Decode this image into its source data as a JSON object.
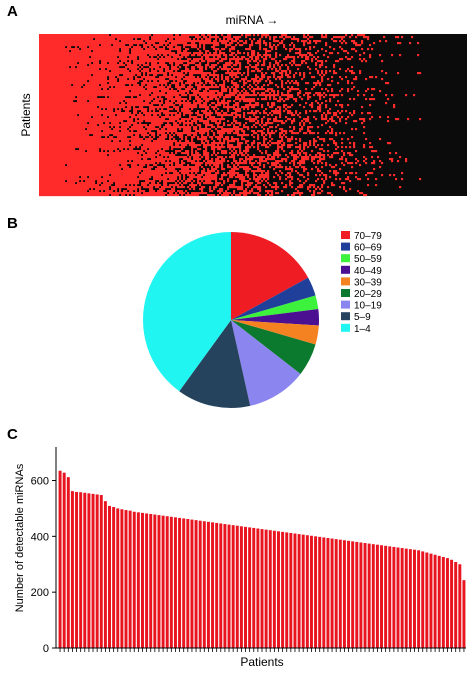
{
  "panels": {
    "a": "A",
    "b": "B",
    "c": "C"
  },
  "chart_data": [
    {
      "type": "heatmap",
      "panel": "A",
      "title": "",
      "xlabel": "miRNA →",
      "ylabel": "Patients",
      "colors": {
        "high": "#ff2a2a",
        "low": "#0b0b0b"
      },
      "grid": false
    },
    {
      "type": "pie",
      "panel": "B",
      "title": "",
      "legend_position": "right",
      "slices": [
        {
          "label": "70–79",
          "value": 17.0,
          "color": "#ef1c24"
        },
        {
          "label": "60–69",
          "value": 3.5,
          "color": "#1f3f9a"
        },
        {
          "label": "50–59",
          "value": 2.5,
          "color": "#3cf23c"
        },
        {
          "label": "40–49",
          "value": 3.0,
          "color": "#4b0f91"
        },
        {
          "label": "30–39",
          "value": 3.5,
          "color": "#f58220"
        },
        {
          "label": "20–29",
          "value": 6.0,
          "color": "#0c7a2e"
        },
        {
          "label": "10–19",
          "value": 11.0,
          "color": "#8b85f0"
        },
        {
          "label": "5–9",
          "value": 13.5,
          "color": "#26435e"
        },
        {
          "label": "1–4",
          "value": 40.0,
          "color": "#20f5f2"
        }
      ]
    },
    {
      "type": "bar",
      "panel": "C",
      "title": "",
      "xlabel": "Patients",
      "ylabel": "Number of detectable miRNAs",
      "ylim": [
        0,
        720
      ],
      "yticks": [
        0,
        200,
        400,
        600
      ],
      "bar_color": "#e8141f",
      "values": [
        635,
        628,
        612,
        562,
        559,
        558,
        556,
        554,
        552,
        550,
        548,
        526,
        509,
        505,
        500,
        497,
        494,
        492,
        488,
        486,
        484,
        482,
        480,
        478,
        476,
        474,
        472,
        470,
        468,
        466,
        464,
        462,
        460,
        458,
        456,
        454,
        452,
        450,
        448,
        446,
        444,
        442,
        440,
        438,
        436,
        434,
        432,
        430,
        428,
        426,
        424,
        422,
        420,
        418,
        416,
        414,
        412,
        410,
        408,
        406,
        404,
        402,
        400,
        398,
        396,
        394,
        392,
        390,
        388,
        386,
        384,
        382,
        380,
        378,
        376,
        374,
        372,
        370,
        368,
        366,
        364,
        362,
        360,
        358,
        356,
        354,
        352,
        350,
        346,
        342,
        338,
        334,
        330,
        326,
        322,
        316,
        308,
        300,
        243
      ]
    }
  ]
}
